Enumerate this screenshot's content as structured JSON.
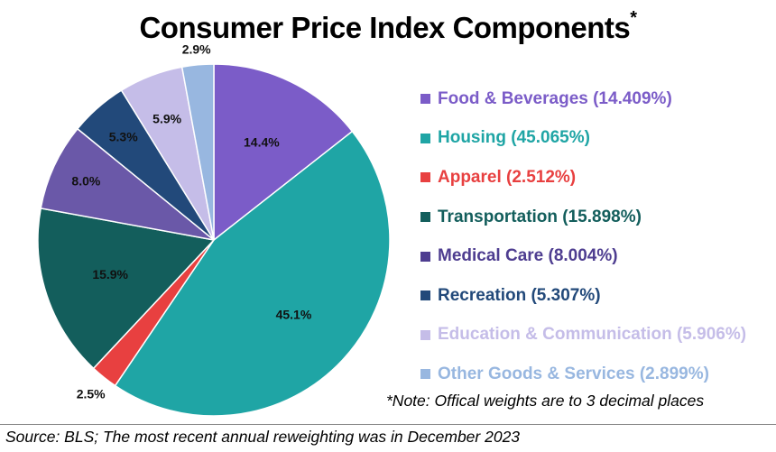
{
  "chart_data": {
    "type": "pie",
    "title": "Consumer Price Index Components",
    "title_marker": "*",
    "slices": [
      {
        "name": "Food & Beverages",
        "weight": "14.409%",
        "value": 14.409,
        "label": "14.4%",
        "color": "#7b5cc8",
        "legend_color": "#7b5cc8"
      },
      {
        "name": "Housing",
        "weight": "45.065%",
        "value": 45.065,
        "label": "45.1%",
        "color": "#1fa5a5",
        "legend_color": "#1fa5a5"
      },
      {
        "name": "Apparel",
        "weight": "2.512%",
        "value": 2.512,
        "label": "2.5%",
        "color": "#e84040",
        "legend_color": "#e84040"
      },
      {
        "name": "Transportation",
        "weight": "15.898%",
        "value": 15.898,
        "label": "15.9%",
        "color": "#135e5c",
        "legend_color": "#135e5c"
      },
      {
        "name": "Medical Care",
        "weight": "8.004%",
        "value": 8.004,
        "label": "8.0%",
        "color": "#6a58a8",
        "legend_color": "#4e3d90"
      },
      {
        "name": "Recreation",
        "weight": "5.307%",
        "value": 5.307,
        "label": "5.3%",
        "color": "#22497a",
        "legend_color": "#22497a"
      },
      {
        "name": "Education & Communication",
        "weight": "5.906%",
        "value": 5.906,
        "label": "5.9%",
        "color": "#c5bde8",
        "legend_color": "#c5bde8"
      },
      {
        "name": "Other Goods & Services",
        "weight": "2.899%",
        "value": 2.899,
        "label": "2.9%",
        "color": "#98b7e0",
        "legend_color": "#98b7e0"
      }
    ],
    "legend_position": "right"
  },
  "note": "*Note: Offical weights are to 3 decimal places",
  "source": "Source: BLS; The most recent annual reweighting was in December 2023"
}
